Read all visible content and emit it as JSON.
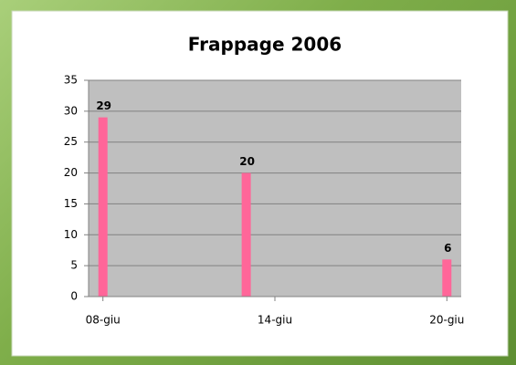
{
  "chart_data": {
    "type": "bar",
    "title": "Frappage 2006",
    "x": [
      8,
      13,
      20
    ],
    "values": [
      29,
      20,
      6
    ],
    "color": "#ff6699",
    "xlim": [
      7.5,
      20.5
    ],
    "xticks": [
      {
        "value": 8,
        "label": "08-giu"
      },
      {
        "value": 14,
        "label": "14-giu"
      },
      {
        "value": 20,
        "label": "20-giu"
      }
    ],
    "ylim": [
      0,
      35
    ],
    "yticks": [
      0,
      5,
      10,
      15,
      20,
      25,
      30,
      35
    ],
    "grid": true
  }
}
